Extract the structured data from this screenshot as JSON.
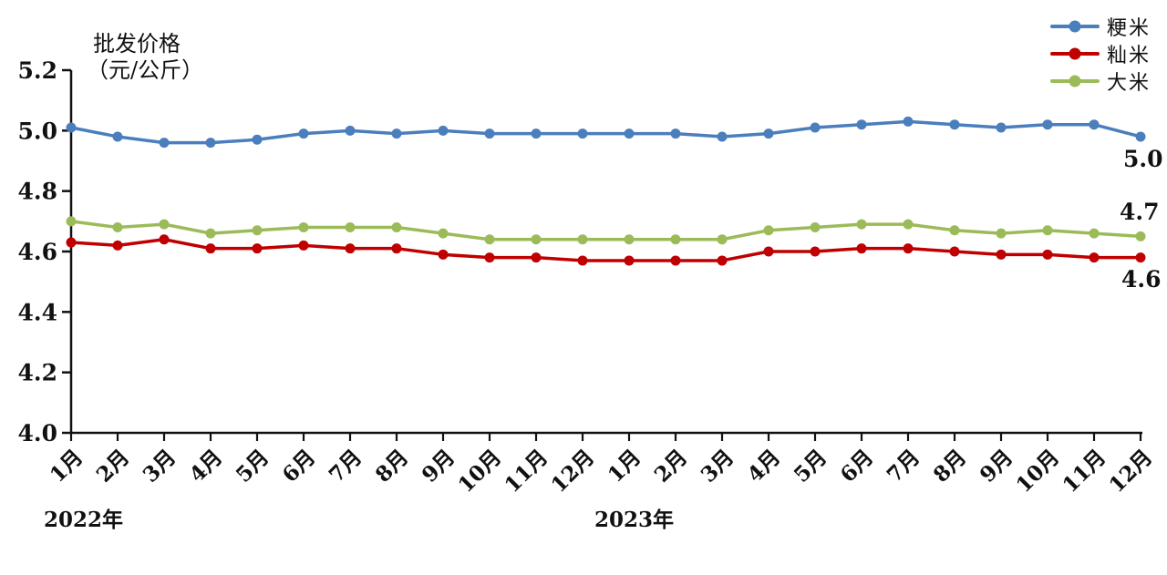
{
  "chart_data": {
    "type": "line",
    "title": "批发价格",
    "title_unit": "（元/公斤）",
    "grid": false,
    "legend_position": "top-right",
    "ylim": [
      4.0,
      5.2
    ],
    "y_tick_labels": [
      "4.0",
      "4.2",
      "4.4",
      "4.6",
      "4.8",
      "5.0",
      "5.2"
    ],
    "x_categories": [
      "1月",
      "2月",
      "3月",
      "4月",
      "5月",
      "6月",
      "7月",
      "8月",
      "9月",
      "10月",
      "11月",
      "12月",
      "1月",
      "2月",
      "3月",
      "4月",
      "5月",
      "6月",
      "7月",
      "8月",
      "9月",
      "10月",
      "11月",
      "12月"
    ],
    "year_labels": [
      {
        "text": "2022年"
      },
      {
        "text": "2023年"
      }
    ],
    "series": [
      {
        "key": "jingmi",
        "name": "粳米",
        "color": "#4A7EBD",
        "end_label": "5.0",
        "values": [
          5.01,
          4.98,
          4.96,
          4.96,
          4.97,
          4.99,
          5.0,
          4.99,
          5.0,
          4.99,
          4.99,
          4.99,
          4.99,
          4.99,
          4.98,
          4.99,
          5.01,
          5.02,
          5.03,
          5.02,
          5.01,
          5.02,
          5.02,
          4.98
        ]
      },
      {
        "key": "xianmi",
        "name": "籼米",
        "color": "#C00000",
        "end_label": "4.6",
        "values": [
          4.63,
          4.62,
          4.64,
          4.61,
          4.61,
          4.62,
          4.61,
          4.61,
          4.59,
          4.58,
          4.58,
          4.57,
          4.57,
          4.57,
          4.57,
          4.6,
          4.6,
          4.61,
          4.61,
          4.6,
          4.59,
          4.59,
          4.58,
          4.58
        ]
      },
      {
        "key": "dami",
        "name": "大米",
        "color": "#9BBB59",
        "end_label": "4.7",
        "values": [
          4.7,
          4.68,
          4.69,
          4.66,
          4.67,
          4.68,
          4.68,
          4.68,
          4.66,
          4.64,
          4.64,
          4.64,
          4.64,
          4.64,
          4.64,
          4.67,
          4.68,
          4.69,
          4.69,
          4.67,
          4.66,
          4.67,
          4.66,
          4.65
        ]
      }
    ],
    "axis_color": "#111111"
  }
}
